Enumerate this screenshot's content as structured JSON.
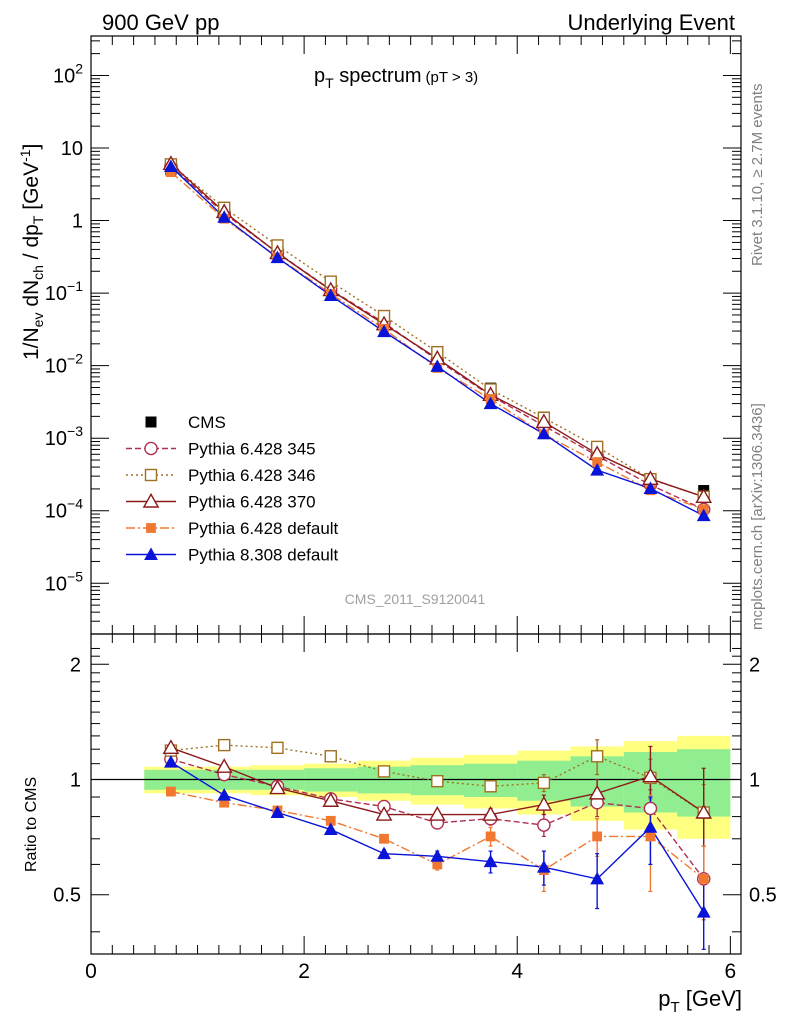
{
  "header": {
    "left": "900 GeV pp",
    "right": "Underlying Event"
  },
  "side_labels": {
    "rivet": "Rivet 3.1.10, ≥ 2.7M events",
    "mcplots": "mcplots.cern.ch [arXiv:1306.3436]"
  },
  "plot_title": {
    "main": "p",
    "sub": "T",
    "rest": " spectrum",
    "cut": "(pT >  3)"
  },
  "ylabel": {
    "a": "1/N",
    "a_sub": "ev",
    "b": " dN",
    "b_sub": "ch",
    "c": " / dp",
    "c_sub": "T",
    "d": " [GeV",
    "d_sup": "-1",
    "e": "]"
  },
  "ratio_ylabel": "Ratio to CMS",
  "xlabel": {
    "a": "p",
    "a_sub": "T",
    "b": " [GeV]"
  },
  "watermark": "CMS_2011_S9120041",
  "upper_ticks": [
    {
      "v": 100,
      "base": "10",
      "exp": "2"
    },
    {
      "v": 10,
      "base": "10",
      "exp": ""
    },
    {
      "v": 1,
      "base": "1",
      "exp": ""
    },
    {
      "v": 0.1,
      "base": "10",
      "exp": "−1"
    },
    {
      "v": 0.01,
      "base": "10",
      "exp": "−2"
    },
    {
      "v": 0.001,
      "base": "10",
      "exp": "−3"
    },
    {
      "v": 0.0001,
      "base": "10",
      "exp": "−4"
    },
    {
      "v": 1e-05,
      "base": "10",
      "exp": "−5"
    }
  ],
  "ratio_ticks": [
    {
      "v": 2,
      "label": "2"
    },
    {
      "v": 1,
      "label": "1"
    },
    {
      "v": 0.5,
      "label": "0.5"
    }
  ],
  "x_ticks": [
    {
      "v": 0,
      "label": "0"
    },
    {
      "v": 2,
      "label": "2"
    },
    {
      "v": 4,
      "label": "4"
    },
    {
      "v": 6,
      "label": "6"
    }
  ],
  "chart_data": {
    "type": "scatter",
    "x": [
      0.75,
      1.25,
      1.75,
      2.25,
      2.75,
      3.25,
      3.75,
      4.25,
      4.75,
      5.25,
      5.75
    ],
    "bin_edges": [
      0.5,
      1.0,
      1.5,
      2.0,
      2.5,
      3.0,
      3.5,
      4.0,
      4.5,
      5.0,
      5.5,
      6.0
    ],
    "xlim": [
      0,
      6.1
    ],
    "ylim": [
      2e-06,
      350
    ],
    "yscale": "log",
    "ratio_ylim": [
      0.35,
      2.4
    ],
    "ratio_yscale": "log",
    "legend_position": "lower-left",
    "data": {
      "name": "CMS",
      "values": [
        5.0,
        1.22,
        0.375,
        0.125,
        0.046,
        0.0155,
        0.0049,
        0.00195,
        0.00066,
        0.00027,
        0.00019
      ],
      "band_inner": [
        0.06,
        0.06,
        0.06,
        0.07,
        0.08,
        0.09,
        0.1,
        0.12,
        0.15,
        0.18,
        0.2
      ],
      "band_outer": [
        0.08,
        0.08,
        0.09,
        0.1,
        0.12,
        0.14,
        0.16,
        0.19,
        0.22,
        0.26,
        0.3
      ]
    },
    "series": [
      {
        "name": "Pythia 6.428 345",
        "color": "#b03050",
        "dash": "6,3",
        "marker": "circle-open",
        "ratio": [
          1.13,
          1.03,
          0.96,
          0.89,
          0.85,
          0.77,
          0.79,
          0.76,
          0.87,
          0.84,
          0.55
        ],
        "err": [
          0.01,
          0.01,
          0.01,
          0.01,
          0.015,
          0.02,
          0.03,
          0.05,
          0.07,
          0.1,
          0.12
        ]
      },
      {
        "name": "Pythia 6.428 346",
        "color": "#a07020",
        "dash": "2,3",
        "marker": "square-open",
        "ratio": [
          1.19,
          1.23,
          1.21,
          1.15,
          1.05,
          0.99,
          0.96,
          0.98,
          1.15,
          1.01,
          0.82
        ],
        "err": [
          0.01,
          0.01,
          0.01,
          0.015,
          0.02,
          0.02,
          0.03,
          0.05,
          0.12,
          0.12,
          0.15
        ]
      },
      {
        "name": "Pythia 6.428 370",
        "color": "#8b1a1a",
        "dash": "",
        "marker": "triangle-open",
        "ratio": [
          1.21,
          1.08,
          0.95,
          0.88,
          0.81,
          0.81,
          0.81,
          0.86,
          0.92,
          1.02,
          0.82
        ],
        "err": [
          0.01,
          0.01,
          0.01,
          0.01,
          0.02,
          0.02,
          0.03,
          0.05,
          0.08,
          0.2,
          0.25
        ]
      },
      {
        "name": "Pythia 6.428 default",
        "color": "#f07830",
        "dash": "9,3,2,3",
        "marker": "square-filled",
        "ratio": [
          0.93,
          0.87,
          0.83,
          0.78,
          0.7,
          0.6,
          0.71,
          0.58,
          0.71,
          0.71,
          0.55
        ],
        "err": [
          0.01,
          0.01,
          0.01,
          0.01,
          0.015,
          0.02,
          0.04,
          0.07,
          0.08,
          0.2,
          0.12
        ]
      },
      {
        "name": "Pythia 8.308 default",
        "color": "#0a14d8",
        "dash": "",
        "marker": "triangle-filled",
        "ratio": [
          1.11,
          0.91,
          0.82,
          0.74,
          0.64,
          0.63,
          0.61,
          0.59,
          0.55,
          0.75,
          0.45
        ],
        "err": [
          0.01,
          0.01,
          0.01,
          0.01,
          0.015,
          0.02,
          0.04,
          0.06,
          0.09,
          0.15,
          0.1
        ]
      }
    ]
  }
}
